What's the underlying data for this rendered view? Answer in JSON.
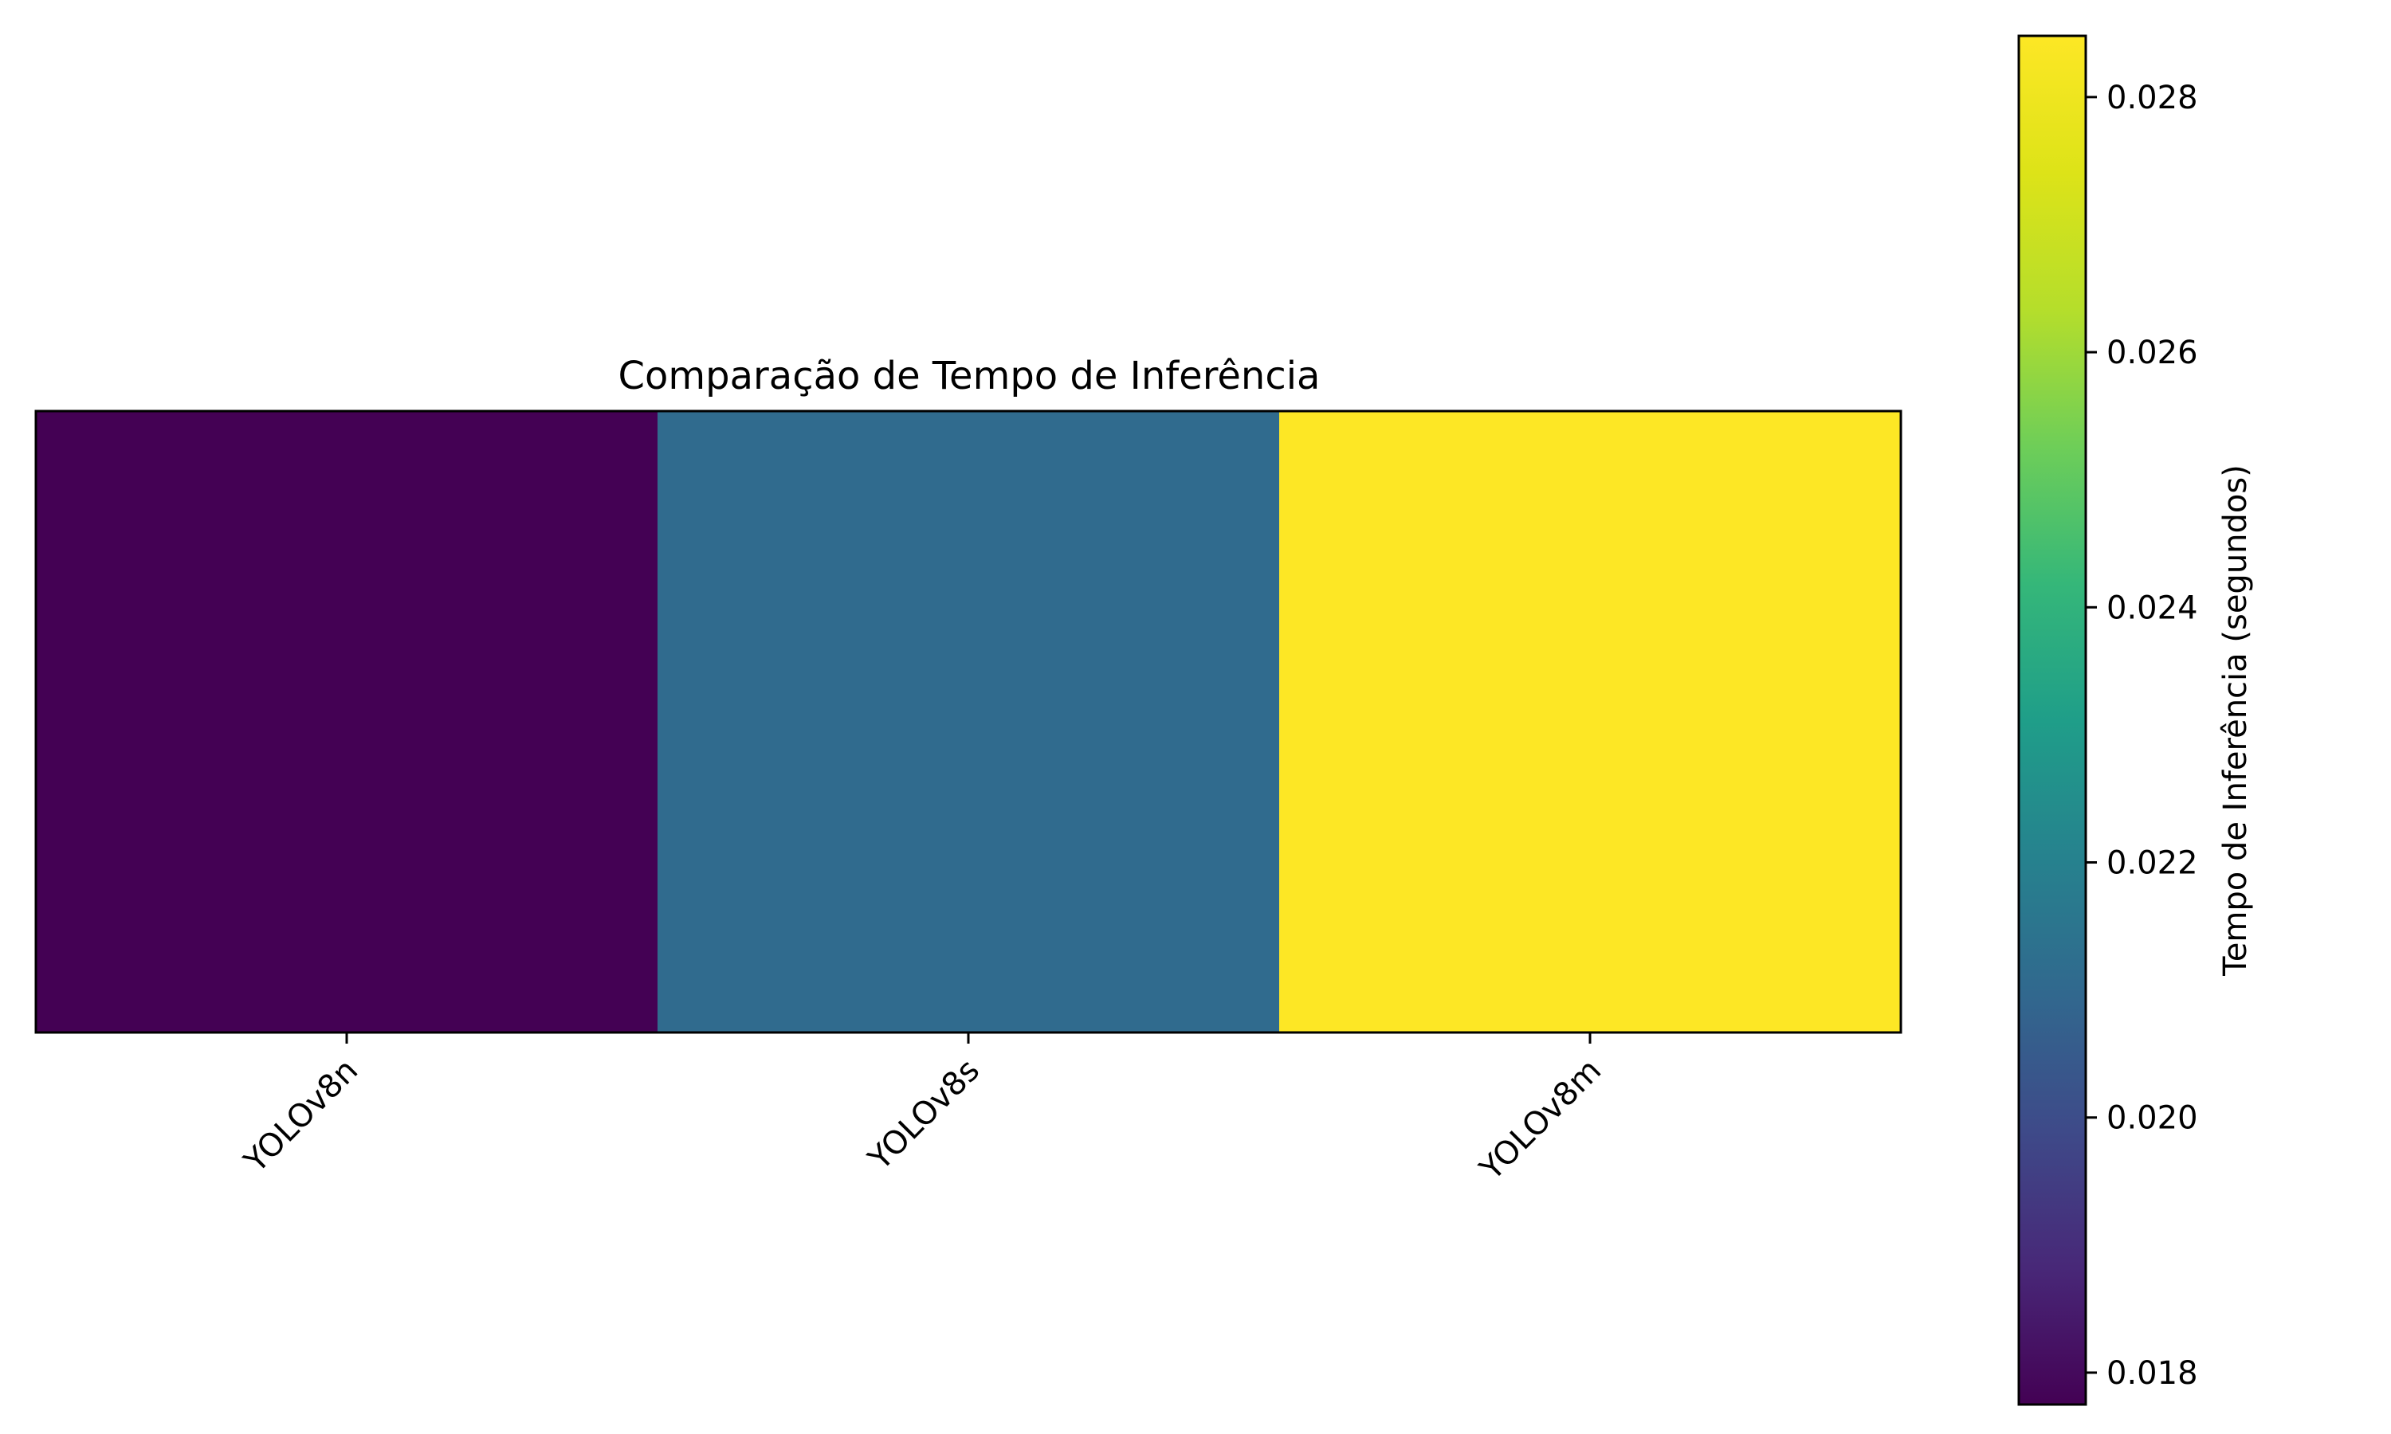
{
  "chart_data": {
    "type": "heatmap",
    "title": "Comparação de Tempo de Inferência",
    "categories": [
      "YOLOv8n",
      "YOLOv8s",
      "YOLOv8m"
    ],
    "values": [
      0.01775,
      0.02108,
      0.02848
    ],
    "colorbar": {
      "label": "Tempo de Inferência (segundos)",
      "min": 0.01775,
      "max": 0.02848,
      "ticks": [
        0.018,
        0.02,
        0.022,
        0.024,
        0.026,
        0.028
      ],
      "tick_labels": [
        "0.018",
        "0.020",
        "0.022",
        "0.024",
        "0.026",
        "0.028"
      ],
      "colormap": "viridis"
    },
    "grid": false,
    "xtick_rotation_deg": 45
  }
}
